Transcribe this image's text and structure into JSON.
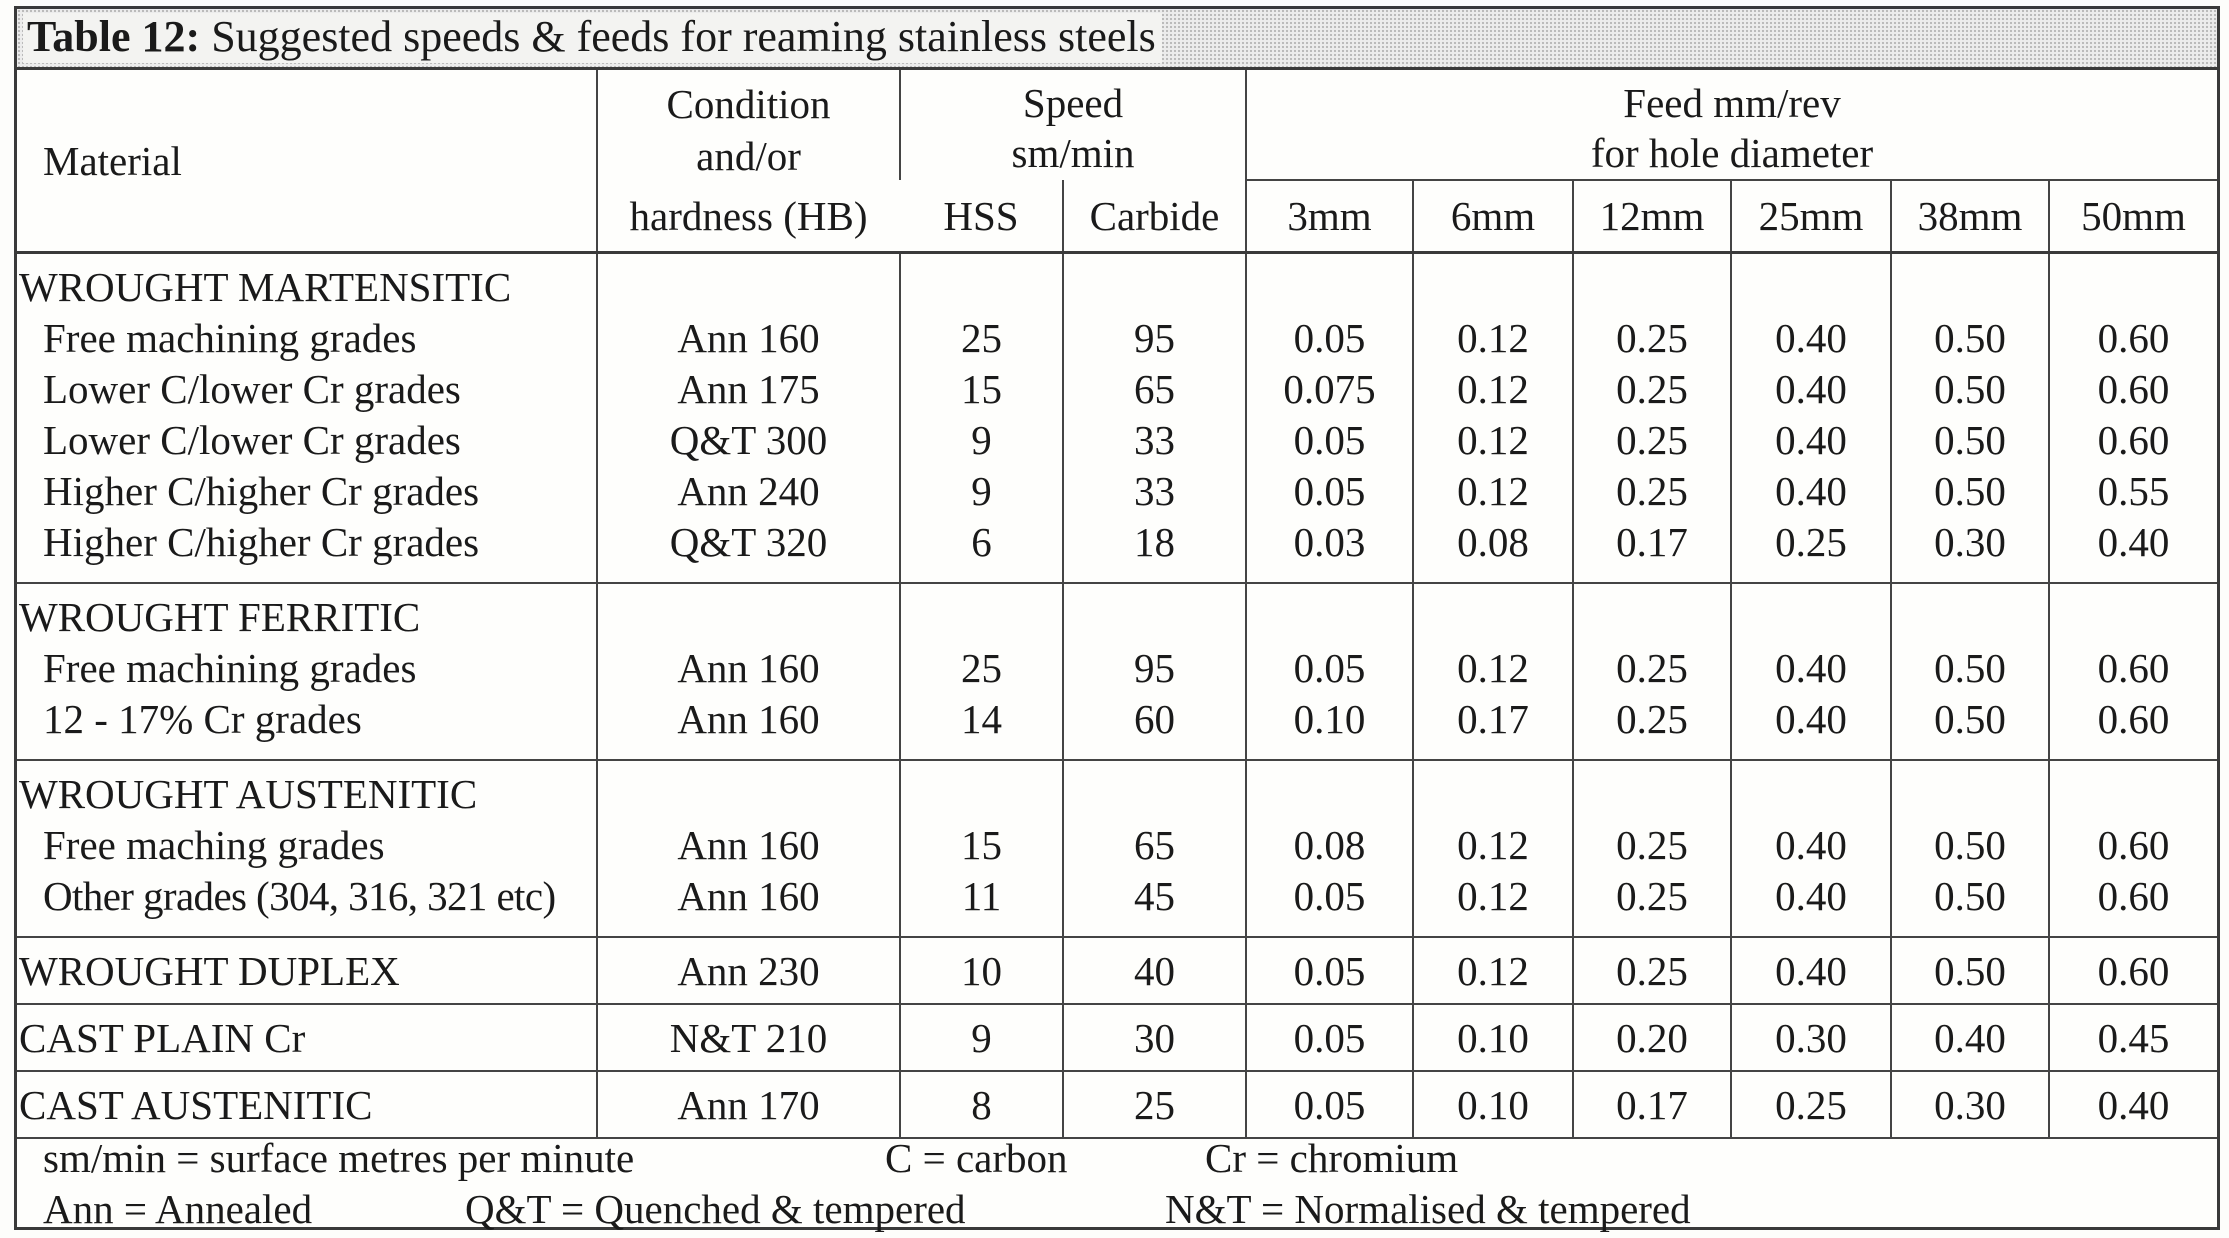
{
  "title": {
    "label": "Table 12:",
    "text": "Suggested speeds & feeds for reaming stainless steels"
  },
  "header": {
    "material": "Material",
    "condition_top": "Condition",
    "condition_mid": "and/or",
    "condition_bottom": "hardness (HB)",
    "speed_top": "Speed",
    "speed_bottom": "sm/min",
    "hss": "HSS",
    "carbide": "Carbide",
    "feed_top": "Feed mm/rev",
    "feed_bottom": "for hole diameter",
    "diameters": [
      "3mm",
      "6mm",
      "12mm",
      "25mm",
      "38mm",
      "50mm"
    ]
  },
  "groups": [
    {
      "category": "WROUGHT MARTENSITIC",
      "rows": [
        {
          "material": "Free machining grades",
          "condition": "Ann 160",
          "hss": "25",
          "carbide": "95",
          "feeds": [
            "0.05",
            "0.12",
            "0.25",
            "0.40",
            "0.50",
            "0.60"
          ]
        },
        {
          "material": "Lower C/lower Cr grades",
          "condition": "Ann 175",
          "hss": "15",
          "carbide": "65",
          "feeds": [
            "0.075",
            "0.12",
            "0.25",
            "0.40",
            "0.50",
            "0.60"
          ]
        },
        {
          "material": "Lower C/lower Cr grades",
          "condition": "Q&T 300",
          "hss": "9",
          "carbide": "33",
          "feeds": [
            "0.05",
            "0.12",
            "0.25",
            "0.40",
            "0.50",
            "0.60"
          ]
        },
        {
          "material": "Higher C/higher Cr grades",
          "condition": "Ann 240",
          "hss": "9",
          "carbide": "33",
          "feeds": [
            "0.05",
            "0.12",
            "0.25",
            "0.40",
            "0.50",
            "0.55"
          ]
        },
        {
          "material": "Higher C/higher Cr grades",
          "condition": "Q&T 320",
          "hss": "6",
          "carbide": "18",
          "feeds": [
            "0.03",
            "0.08",
            "0.17",
            "0.25",
            "0.30",
            "0.40"
          ]
        }
      ]
    },
    {
      "category": "WROUGHT FERRITIC",
      "rows": [
        {
          "material": "Free machining grades",
          "condition": "Ann 160",
          "hss": "25",
          "carbide": "95",
          "feeds": [
            "0.05",
            "0.12",
            "0.25",
            "0.40",
            "0.50",
            "0.60"
          ]
        },
        {
          "material": "12 - 17% Cr grades",
          "condition": "Ann 160",
          "hss": "14",
          "carbide": "60",
          "feeds": [
            "0.10",
            "0.17",
            "0.25",
            "0.40",
            "0.50",
            "0.60"
          ]
        }
      ]
    },
    {
      "category": "WROUGHT AUSTENITIC",
      "rows": [
        {
          "material": "Free maching grades",
          "condition": "Ann 160",
          "hss": "15",
          "carbide": "65",
          "feeds": [
            "0.08",
            "0.12",
            "0.25",
            "0.40",
            "0.50",
            "0.60"
          ]
        },
        {
          "material": "Other grades (304, 316, 321 etc)",
          "condition": "Ann 160",
          "hss": "11",
          "carbide": "45",
          "feeds": [
            "0.05",
            "0.12",
            "0.25",
            "0.40",
            "0.50",
            "0.60"
          ]
        }
      ]
    },
    {
      "category": "WROUGHT DUPLEX",
      "inline": {
        "condition": "Ann 230",
        "hss": "10",
        "carbide": "40",
        "feeds": [
          "0.05",
          "0.12",
          "0.25",
          "0.40",
          "0.50",
          "0.60"
        ]
      }
    },
    {
      "category": "CAST PLAIN Cr",
      "inline": {
        "condition": "N&T 210",
        "hss": "9",
        "carbide": "30",
        "feeds": [
          "0.05",
          "0.10",
          "0.20",
          "0.30",
          "0.40",
          "0.45"
        ]
      }
    },
    {
      "category": "CAST AUSTENITIC",
      "inline": {
        "condition": "Ann 170",
        "hss": "8",
        "carbide": "25",
        "feeds": [
          "0.05",
          "0.10",
          "0.17",
          "0.25",
          "0.30",
          "0.40"
        ]
      }
    }
  ],
  "legend": {
    "sm_min": "sm/min = surface metres per minute",
    "c": "C = carbon",
    "cr": "Cr = chromium",
    "ann": "Ann = Annealed",
    "qt": "Q&T = Quenched & tempered",
    "nt": "N&T = Normalised & tempered"
  }
}
